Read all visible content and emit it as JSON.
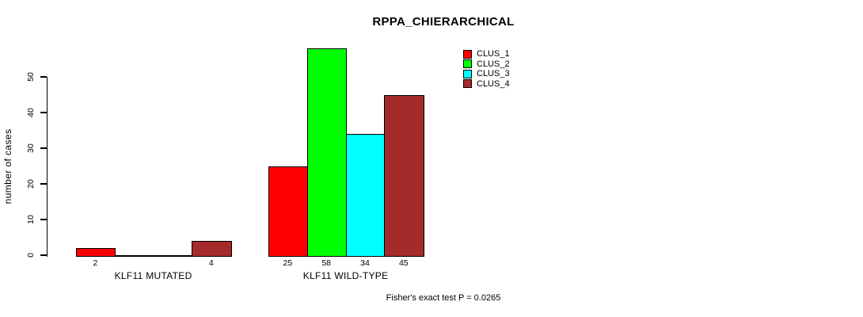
{
  "chart_data": {
    "type": "bar",
    "title": "RPPA_CHIERARCHICAL",
    "ylabel": "number of cases",
    "xlabel": "",
    "ylim": [
      0,
      50
    ],
    "yticks": [
      0,
      10,
      20,
      30,
      40,
      50
    ],
    "grid": false,
    "legend_position": "top-right-inside",
    "categories": [
      "KLF11 MUTATED",
      "KLF11 WILD-TYPE"
    ],
    "series": [
      {
        "name": "CLUS_1",
        "color": "#FF0000",
        "values": [
          2,
          25
        ]
      },
      {
        "name": "CLUS_2",
        "color": "#00FF00",
        "values": [
          0,
          58
        ]
      },
      {
        "name": "CLUS_3",
        "color": "#00FFFF",
        "values": [
          0,
          34
        ]
      },
      {
        "name": "CLUS_4",
        "color": "#A52A2A",
        "values": [
          4,
          45
        ]
      }
    ],
    "bar_value_labels": [
      [
        "2",
        "",
        "",
        "4"
      ],
      [
        "25",
        "58",
        "34",
        "45"
      ]
    ],
    "footnote": "Fisher's exact test P = 0.0265",
    "axis_color": "#000000",
    "background_color": "#FFFFFF"
  }
}
